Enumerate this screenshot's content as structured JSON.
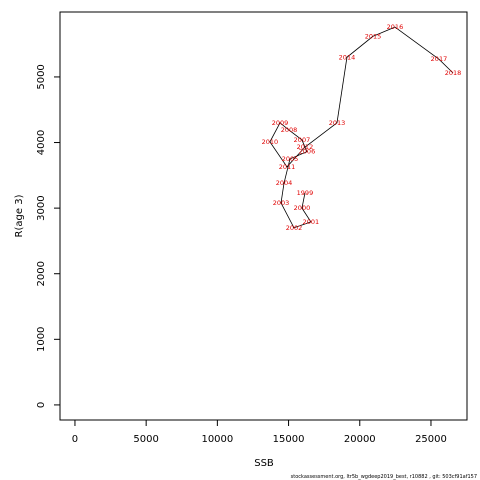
{
  "chart_data": {
    "type": "line",
    "x_label": "SSB",
    "y_label": "R(age 3)",
    "footnote": "stockassessment.org, ltr5b_wgdeep2019_best, r10882 , git: 503cf91af157",
    "color": "#000000",
    "label_color": "#e00000",
    "point_labels": [
      "1999",
      "2000",
      "2001",
      "2002",
      "2003",
      "2004",
      "2005",
      "2006",
      "2007",
      "2008",
      "2009",
      "2010",
      "2011",
      "2012",
      "2013",
      "2014",
      "2015",
      "2016",
      "2017",
      "2018"
    ],
    "x": [
      16150,
      15940,
      16570,
      15380,
      14470,
      14680,
      15100,
      16290,
      15940,
      15030,
      14400,
      13690,
      14890,
      16150,
      18400,
      19100,
      20930,
      22470,
      25560,
      26550
    ],
    "values": [
      3230,
      3000,
      2790,
      2700,
      3080,
      3380,
      3750,
      3860,
      4040,
      4190,
      4300,
      4010,
      3630,
      3930,
      4300,
      5300,
      5620,
      5760,
      5270,
      5060
    ],
    "xlim": [
      -1050,
      27530
    ],
    "ylim": [
      -230,
      5990
    ],
    "xticks": [
      0,
      5000,
      10000,
      15000,
      20000,
      25000
    ],
    "yticks": [
      0,
      1000,
      2000,
      3000,
      4000,
      5000
    ]
  }
}
